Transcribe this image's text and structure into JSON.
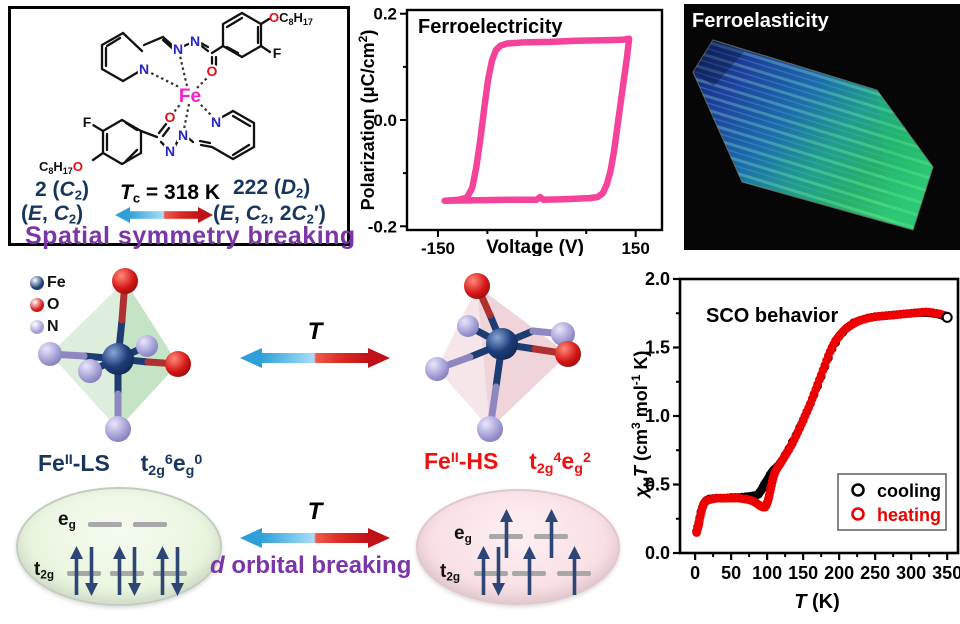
{
  "molecule_panel": {
    "atom_labels": {
      "N": "N",
      "O": "O",
      "Fe": "Fe",
      "F": "F"
    },
    "substituent_top": [
      "O",
      "C",
      "8",
      "H",
      "17"
    ],
    "substituent_bottom": [
      "C",
      "8",
      "H",
      "17",
      "O"
    ],
    "phase_left_line1": [
      "2 (",
      "C",
      "2",
      ")"
    ],
    "phase_left_line2": [
      "(",
      "E",
      ", ",
      "C",
      "2",
      ")"
    ],
    "tc": [
      "T",
      "c",
      " = 318 K"
    ],
    "phase_right_line1": [
      "222 (",
      "D",
      "2",
      ")"
    ],
    "phase_right_line2": [
      "(",
      "E",
      ", ",
      "C",
      "2",
      ", 2",
      "C",
      "2",
      "′)"
    ],
    "caption": "Spatial symmetry breaking"
  },
  "ferroelasticity": {
    "title": "Ferroelasticity"
  },
  "atom_legend": [
    {
      "symbol": "Fe",
      "color": "#1d3c78"
    },
    {
      "symbol": "O",
      "color": "#d41616"
    },
    {
      "symbol": "N",
      "color": "#a49fd6"
    }
  ],
  "spin_states": {
    "ls_label": [
      "Fe",
      "II",
      "-LS"
    ],
    "ls_config": [
      "t",
      "2g",
      "6",
      "e",
      "g",
      "0"
    ],
    "hs_label": [
      "Fe",
      "II",
      "-HS"
    ],
    "hs_config": [
      "t",
      "2g",
      "4",
      "e",
      "g",
      "2"
    ],
    "temperature_symbol": "T",
    "caption_d": "d",
    "caption_rest": " orbital breaking"
  },
  "orbitals": {
    "eg_label": [
      "e",
      "g"
    ],
    "t2g_label": [
      "t",
      "2g"
    ],
    "ls": {
      "eg": [
        "",
        ""
      ],
      "t2g": [
        "ud",
        "ud",
        "ud"
      ]
    },
    "hs": {
      "eg": [
        "u",
        "u"
      ],
      "t2g": [
        "ud",
        "u",
        "u"
      ]
    },
    "arrow_color": "#2d4676"
  },
  "chart_data": [
    {
      "id": "ferroelectricity",
      "type": "line",
      "title": "Ferroelectricity",
      "xlabel": "Voltage (V)",
      "ylabel_tokens": [
        "Polarization (μC/cm",
        "2",
        ")"
      ],
      "xlim": [
        -197,
        190
      ],
      "ylim": [
        -0.207,
        0.207
      ],
      "xticks": [
        -150,
        0,
        150
      ],
      "xticks_minor": [
        -75,
        75
      ],
      "yticks": [
        0.2,
        0.0,
        -0.2
      ],
      "yticks_minor": [
        0.1,
        -0.1
      ],
      "line_color": "#f5439b",
      "loop": [
        [
          -140,
          -0.152
        ],
        [
          -118,
          -0.15
        ],
        [
          -106,
          -0.146
        ],
        [
          -98,
          -0.128
        ],
        [
          -92,
          -0.09
        ],
        [
          -86,
          -0.04
        ],
        [
          -80,
          0.02
        ],
        [
          -74,
          0.075
        ],
        [
          -68,
          0.112
        ],
        [
          -62,
          0.132
        ],
        [
          -55,
          0.14
        ],
        [
          -45,
          0.144
        ],
        [
          -20,
          0.146
        ],
        [
          20,
          0.147
        ],
        [
          60,
          0.149
        ],
        [
          100,
          0.15
        ],
        [
          130,
          0.151
        ],
        [
          140,
          0.153
        ],
        [
          137,
          0.12
        ],
        [
          132,
          0.075
        ],
        [
          127,
          0.03
        ],
        [
          122,
          -0.015
        ],
        [
          117,
          -0.06
        ],
        [
          112,
          -0.095
        ],
        [
          106,
          -0.122
        ],
        [
          100,
          -0.138
        ],
        [
          92,
          -0.145
        ],
        [
          80,
          -0.147
        ],
        [
          40,
          -0.149
        ],
        [
          10,
          -0.15
        ],
        [
          5,
          -0.145
        ],
        [
          0,
          -0.15
        ],
        [
          -40,
          -0.15
        ],
        [
          -90,
          -0.151
        ],
        [
          -140,
          -0.152
        ]
      ]
    },
    {
      "id": "sco",
      "type": "scatter",
      "title": "SCO behavior",
      "xlabel_tokens": [
        "T",
        " (K)"
      ],
      "ylabel_tokens": [
        "χ",
        "M",
        "T",
        " (cm",
        "3",
        " mol",
        "-1",
        " K)"
      ],
      "xlim": [
        -21,
        365
      ],
      "ylim": [
        0,
        2.0
      ],
      "xticks": [
        0,
        50,
        100,
        150,
        200,
        250,
        300,
        350
      ],
      "xticks_minor": [
        25,
        75,
        125,
        175,
        225,
        275,
        325
      ],
      "yticks": [
        0.0,
        0.5,
        1.0,
        1.5,
        2.0
      ],
      "yticks_minor": [
        0.25,
        0.75,
        1.25,
        1.75
      ],
      "legend": [
        {
          "label": "cooling",
          "color": "#000000"
        },
        {
          "label": "heating",
          "color": "#ee0000"
        }
      ],
      "series": [
        {
          "name": "cooling",
          "color": "#000000",
          "points": [
            [
              2,
              0.16
            ],
            [
              5,
              0.22
            ],
            [
              8,
              0.3
            ],
            [
              12,
              0.36
            ],
            [
              16,
              0.385
            ],
            [
              20,
              0.395
            ],
            [
              30,
              0.4
            ],
            [
              40,
              0.4
            ],
            [
              50,
              0.405
            ],
            [
              60,
              0.405
            ],
            [
              70,
              0.41
            ],
            [
              78,
              0.415
            ],
            [
              84,
              0.42
            ],
            [
              88,
              0.43
            ],
            [
              92,
              0.46
            ],
            [
              96,
              0.5
            ],
            [
              100,
              0.53
            ],
            [
              104,
              0.57
            ],
            [
              108,
              0.6
            ],
            [
              112,
              0.62
            ],
            [
              116,
              0.64
            ],
            [
              120,
              0.67
            ],
            [
              130,
              0.76
            ],
            [
              140,
              0.86
            ],
            [
              150,
              0.97
            ],
            [
              160,
              1.09
            ],
            [
              170,
              1.22
            ],
            [
              180,
              1.36
            ],
            [
              190,
              1.49
            ],
            [
              200,
              1.58
            ],
            [
              210,
              1.64
            ],
            [
              220,
              1.68
            ],
            [
              230,
              1.7
            ],
            [
              240,
              1.715
            ],
            [
              250,
              1.725
            ],
            [
              260,
              1.73
            ],
            [
              270,
              1.735
            ],
            [
              280,
              1.74
            ],
            [
              290,
              1.745
            ],
            [
              300,
              1.75
            ],
            [
              310,
              1.755
            ],
            [
              320,
              1.755
            ],
            [
              330,
              1.75
            ],
            [
              340,
              1.74
            ],
            [
              350,
              1.72
            ]
          ]
        },
        {
          "name": "heating",
          "color": "#ee0000",
          "points": [
            [
              2,
              0.15
            ],
            [
              3,
              0.17
            ],
            [
              4,
              0.19
            ],
            [
              5,
              0.21
            ],
            [
              6,
              0.24
            ],
            [
              8,
              0.29
            ],
            [
              10,
              0.33
            ],
            [
              12,
              0.36
            ],
            [
              15,
              0.38
            ],
            [
              20,
              0.39
            ],
            [
              25,
              0.395
            ],
            [
              30,
              0.4
            ],
            [
              40,
              0.4
            ],
            [
              50,
              0.4
            ],
            [
              60,
              0.4
            ],
            [
              68,
              0.395
            ],
            [
              74,
              0.39
            ],
            [
              80,
              0.38
            ],
            [
              85,
              0.365
            ],
            [
              90,
              0.345
            ],
            [
              94,
              0.335
            ],
            [
              97,
              0.335
            ],
            [
              99,
              0.35
            ],
            [
              101,
              0.38
            ],
            [
              103,
              0.42
            ],
            [
              105,
              0.47
            ],
            [
              107,
              0.52
            ],
            [
              109,
              0.56
            ],
            [
              111,
              0.59
            ],
            [
              114,
              0.62
            ],
            [
              118,
              0.65
            ],
            [
              122,
              0.685
            ],
            [
              126,
              0.72
            ],
            [
              130,
              0.755
            ],
            [
              135,
              0.8
            ],
            [
              140,
              0.855
            ],
            [
              145,
              0.91
            ],
            [
              150,
              0.97
            ],
            [
              155,
              1.03
            ],
            [
              160,
              1.09
            ],
            [
              165,
              1.16
            ],
            [
              170,
              1.23
            ],
            [
              175,
              1.3
            ],
            [
              180,
              1.37
            ],
            [
              185,
              1.44
            ],
            [
              190,
              1.5
            ],
            [
              195,
              1.55
            ],
            [
              200,
              1.585
            ],
            [
              205,
              1.615
            ],
            [
              210,
              1.64
            ],
            [
              215,
              1.66
            ],
            [
              220,
              1.675
            ],
            [
              225,
              1.69
            ],
            [
              230,
              1.7
            ],
            [
              240,
              1.715
            ],
            [
              250,
              1.725
            ],
            [
              260,
              1.73
            ],
            [
              270,
              1.735
            ],
            [
              280,
              1.74
            ],
            [
              290,
              1.745
            ],
            [
              300,
              1.75
            ],
            [
              310,
              1.755
            ],
            [
              320,
              1.76
            ],
            [
              330,
              1.755
            ],
            [
              340,
              1.745
            ],
            [
              350,
              1.73
            ]
          ]
        }
      ],
      "end_marker": {
        "T": 350,
        "value": 1.72
      }
    }
  ]
}
